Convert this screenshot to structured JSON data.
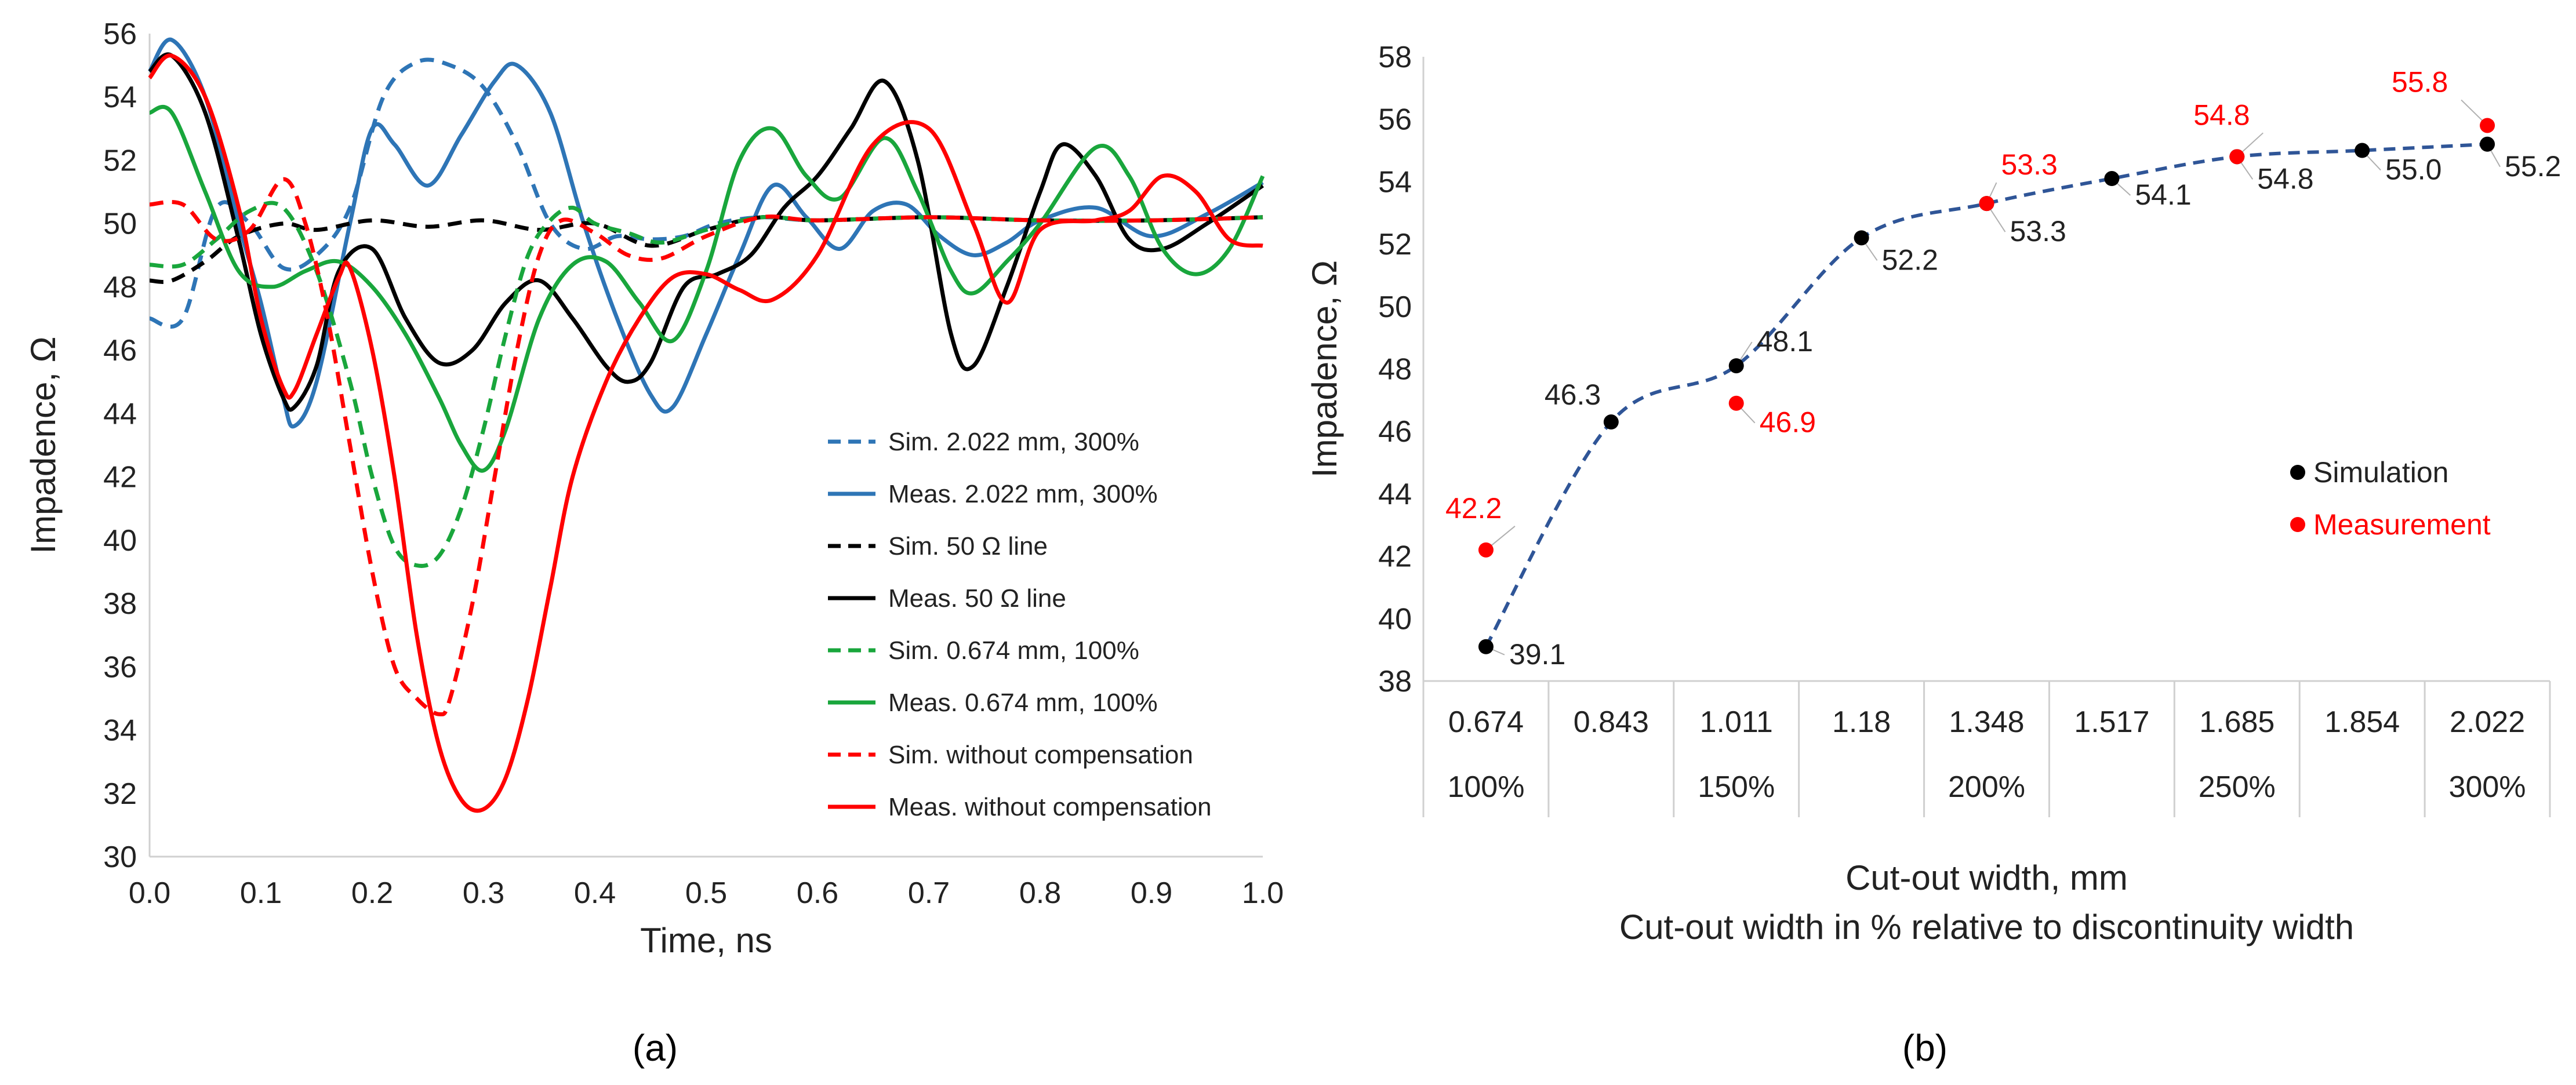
{
  "panel_a_label": "(a)",
  "panel_b_label": "(b)",
  "chart_data": [
    {
      "type": "line",
      "panel": "a",
      "title": "",
      "xlabel": "Time, ns",
      "ylabel": "Impadence, Ω",
      "xlim": [
        0,
        1
      ],
      "ylim": [
        30,
        56
      ],
      "xticks": [
        "0.0",
        "0.1",
        "0.2",
        "0.3",
        "0.4",
        "0.5",
        "0.6",
        "0.7",
        "0.8",
        "0.9",
        "1.0"
      ],
      "yticks": [
        "30",
        "32",
        "34",
        "36",
        "38",
        "40",
        "42",
        "44",
        "46",
        "48",
        "50",
        "52",
        "54",
        "56"
      ],
      "grid": false,
      "legend_position": "bottom-right",
      "series": [
        {
          "name": "Sim. 2.022 mm, 300%",
          "color": "#2e75b6",
          "dash": "dashed",
          "x": [
            0,
            0.03,
            0.06,
            0.09,
            0.12,
            0.15,
            0.18,
            0.21,
            0.24,
            0.27,
            0.3,
            0.33,
            0.36,
            0.39,
            0.42,
            0.45,
            0.48,
            0.51,
            0.55,
            0.6,
            0.7,
            0.8,
            0.9,
            1.0
          ],
          "y": [
            47,
            47,
            50.5,
            50,
            48.6,
            49,
            50.5,
            54,
            55.1,
            55,
            54.3,
            52.5,
            50,
            49.2,
            49.6,
            49.5,
            49.6,
            50,
            50.2,
            50.1,
            50.2,
            50.1,
            50.1,
            50.2
          ]
        },
        {
          "name": "Meas. 2.022 mm, 300%",
          "color": "#2e75b6",
          "dash": "solid",
          "x": [
            0,
            0.02,
            0.05,
            0.08,
            0.1,
            0.12,
            0.13,
            0.15,
            0.18,
            0.2,
            0.22,
            0.25,
            0.28,
            0.31,
            0.33,
            0.36,
            0.39,
            0.42,
            0.45,
            0.47,
            0.5,
            0.53,
            0.56,
            0.59,
            0.62,
            0.65,
            0.68,
            0.71,
            0.74,
            0.77,
            0.8,
            0.85,
            0.9,
            0.95,
            1.0
          ],
          "y": [
            54.8,
            55.8,
            54,
            50,
            47.5,
            44.5,
            43.6,
            45,
            50,
            53,
            52.5,
            51.2,
            52.8,
            54.5,
            55,
            53.5,
            50,
            47,
            44.6,
            44.2,
            46.5,
            49,
            51.2,
            50.2,
            49.2,
            50.4,
            50.6,
            49.6,
            49,
            49.4,
            50.1,
            50.5,
            49.6,
            50.3,
            51.3
          ]
        },
        {
          "name": "Sim. 50 Ω line",
          "color": "#000000",
          "dash": "dashed",
          "x": [
            0,
            0.02,
            0.05,
            0.08,
            0.12,
            0.15,
            0.2,
            0.25,
            0.3,
            0.35,
            0.4,
            0.45,
            0.5,
            0.55,
            0.6,
            0.7,
            0.8,
            0.9,
            1.0
          ],
          "y": [
            48.2,
            48.2,
            48.8,
            49.6,
            50,
            49.8,
            50.1,
            49.9,
            50.1,
            49.8,
            50,
            49.3,
            49.8,
            50.2,
            50.1,
            50.2,
            50.1,
            50.1,
            50.2
          ]
        },
        {
          "name": "Meas. 50 Ω line",
          "color": "#000000",
          "dash": "solid",
          "x": [
            0,
            0.02,
            0.05,
            0.08,
            0.1,
            0.12,
            0.13,
            0.15,
            0.17,
            0.2,
            0.23,
            0.26,
            0.29,
            0.32,
            0.35,
            0.38,
            0.41,
            0.43,
            0.45,
            0.48,
            0.51,
            0.54,
            0.57,
            0.6,
            0.63,
            0.66,
            0.69,
            0.72,
            0.74,
            0.77,
            0.8,
            0.82,
            0.85,
            0.88,
            0.91,
            0.95,
            1.0
          ],
          "y": [
            54.8,
            55.3,
            53.5,
            49.5,
            46.5,
            44.5,
            44.2,
            45.5,
            48.5,
            49.2,
            47,
            45.6,
            46,
            47.5,
            48.2,
            47,
            45.5,
            45,
            45.6,
            48,
            48.4,
            49,
            50.5,
            51.5,
            53,
            54.5,
            52,
            46.5,
            45.5,
            48,
            51,
            52.5,
            51.5,
            49.5,
            49.2,
            50,
            51.2
          ]
        },
        {
          "name": "Sim. 0.674 mm, 100%",
          "color": "#19a63c",
          "dash": "dashed",
          "x": [
            0,
            0.03,
            0.06,
            0.09,
            0.12,
            0.15,
            0.18,
            0.2,
            0.22,
            0.24,
            0.26,
            0.28,
            0.3,
            0.32,
            0.34,
            0.36,
            0.38,
            0.4,
            0.43,
            0.46,
            0.5,
            0.55,
            0.6,
            0.7,
            0.8,
            0.9,
            1.0
          ],
          "y": [
            48.7,
            48.7,
            49.5,
            50.4,
            50.5,
            48.5,
            45,
            42,
            39.8,
            39.2,
            39.5,
            41,
            43.5,
            46.5,
            49,
            50.1,
            50.5,
            50,
            49.7,
            49.4,
            49.8,
            50.2,
            50.1,
            50.2,
            50.1,
            50.1,
            50.2
          ]
        },
        {
          "name": "Meas. 0.674 mm, 100%",
          "color": "#19a63c",
          "dash": "solid",
          "x": [
            0,
            0.02,
            0.05,
            0.08,
            0.11,
            0.14,
            0.17,
            0.2,
            0.23,
            0.26,
            0.28,
            0.3,
            0.32,
            0.35,
            0.38,
            0.41,
            0.44,
            0.47,
            0.5,
            0.53,
            0.56,
            0.59,
            0.62,
            0.66,
            0.69,
            0.72,
            0.74,
            0.77,
            0.8,
            0.85,
            0.88,
            0.91,
            0.94,
            0.97,
            1.0
          ],
          "y": [
            53.5,
            53.5,
            51,
            48.5,
            48,
            48.5,
            48.8,
            48,
            46.5,
            44.5,
            43,
            42.2,
            43.5,
            47,
            48.7,
            48.8,
            47.5,
            46.3,
            48.5,
            52,
            53,
            51.5,
            50.8,
            52.7,
            51,
            48.5,
            47.8,
            48.8,
            50,
            52.4,
            51.5,
            49.2,
            48.4,
            49.2,
            51.5
          ]
        },
        {
          "name": "Sim. without compensation",
          "color": "#ff0000",
          "dash": "dashed",
          "x": [
            0,
            0.03,
            0.06,
            0.09,
            0.12,
            0.14,
            0.16,
            0.18,
            0.2,
            0.22,
            0.24,
            0.26,
            0.27,
            0.29,
            0.31,
            0.33,
            0.35,
            0.37,
            0.4,
            0.43,
            0.46,
            0.5,
            0.55,
            0.6,
            0.7,
            0.8,
            0.9,
            1.0
          ],
          "y": [
            50.6,
            50.6,
            49.5,
            49.8,
            51.4,
            50,
            47,
            43,
            39,
            36,
            35,
            34.5,
            35,
            38,
            42,
            46,
            49,
            50.1,
            49.7,
            49,
            48.9,
            49.6,
            50.2,
            50.1,
            50.2,
            50.1,
            50.1,
            50.2
          ]
        },
        {
          "name": "Meas. without compensation",
          "color": "#ff0000",
          "dash": "solid",
          "x": [
            0,
            0.02,
            0.05,
            0.08,
            0.1,
            0.12,
            0.13,
            0.15,
            0.17,
            0.18,
            0.2,
            0.22,
            0.24,
            0.26,
            0.28,
            0.3,
            0.32,
            0.34,
            0.36,
            0.38,
            0.41,
            0.44,
            0.47,
            0.5,
            0.53,
            0.56,
            0.6,
            0.65,
            0.7,
            0.74,
            0.77,
            0.8,
            0.85,
            0.88,
            0.91,
            0.94,
            0.97,
            1.0
          ],
          "y": [
            54.6,
            55.3,
            54,
            50.5,
            47,
            44.8,
            44.7,
            46.5,
            48.3,
            48.6,
            46,
            42,
            37,
            33.5,
            31.8,
            31.5,
            32.5,
            35,
            38.5,
            42,
            45,
            47,
            48.3,
            48.4,
            47.9,
            47.6,
            49,
            52.5,
            53,
            50,
            47.5,
            49.8,
            50.1,
            50.4,
            51.5,
            51,
            49.5,
            49.3
          ]
        }
      ]
    },
    {
      "type": "scatter",
      "panel": "b",
      "title": "",
      "xlabel": "Cut-out width, mm",
      "xlabel2": "Cut-out width in % relative to discontinuity width",
      "ylabel": "Impadence, Ω",
      "ylim": [
        38,
        58
      ],
      "yticks": [
        "38",
        "40",
        "42",
        "44",
        "46",
        "48",
        "50",
        "52",
        "54",
        "56",
        "58"
      ],
      "categories": [
        "0.674",
        "0.843",
        "1.011",
        "1.18",
        "1.348",
        "1.517",
        "1.685",
        "1.854",
        "2.022"
      ],
      "percent_labels": [
        "100%",
        "",
        "150%",
        "",
        "200%",
        "",
        "250%",
        "",
        "300%"
      ],
      "grid": false,
      "legend_position": "right",
      "series": [
        {
          "name": "Simulation",
          "color": "#000000",
          "values": [
            39.1,
            46.3,
            48.1,
            52.2,
            53.3,
            54.1,
            54.8,
            55.0,
            55.2
          ],
          "labels": [
            "39.1",
            "46.3",
            "48.1",
            "52.2",
            "53.3",
            "54.1",
            "54.8",
            "55.0",
            "55.2"
          ]
        },
        {
          "name": "Measurement",
          "color": "#ff0000",
          "points": [
            [
              0,
              42.2
            ],
            [
              2,
              46.9
            ],
            [
              4,
              53.3
            ],
            [
              6,
              54.8
            ],
            [
              8,
              55.8
            ]
          ],
          "labels": [
            "42.2",
            "46.9",
            "53.3",
            "54.8",
            "55.8"
          ]
        }
      ],
      "trendline": {
        "color": "#2f5597",
        "dash": "dashed"
      }
    }
  ]
}
